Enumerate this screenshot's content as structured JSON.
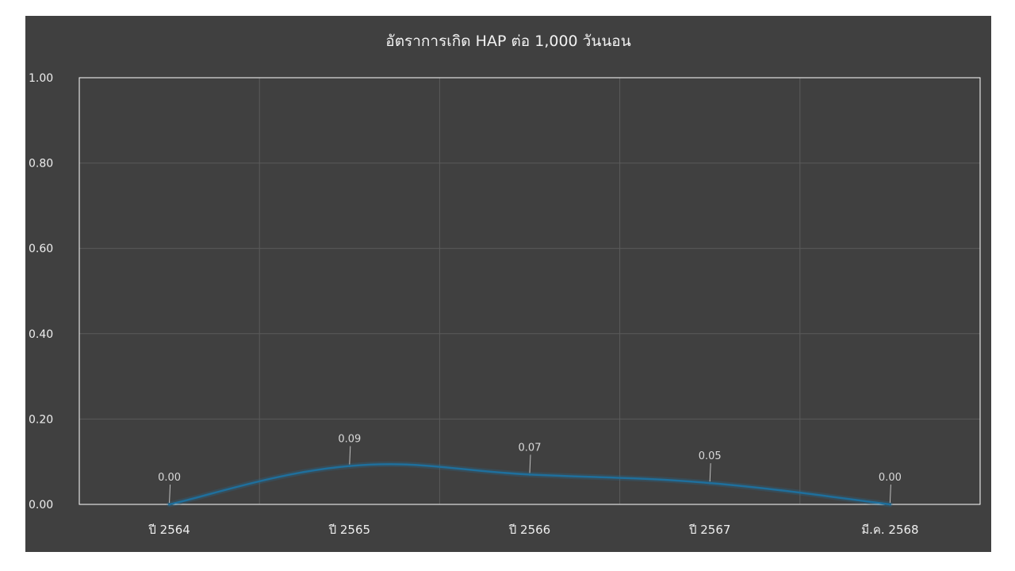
{
  "chart_data": {
    "type": "line",
    "title": "อัตราการเกิด HAP ต่อ 1,000 วันนอน",
    "categories": [
      "ปี 2564",
      "ปี 2565",
      "ปี 2566",
      "ปี 2567",
      "มี.ค. 2568"
    ],
    "series": [
      {
        "values": [
          0.0,
          0.09,
          0.07,
          0.05,
          0.0
        ],
        "color": "#1f6f9c"
      }
    ],
    "data_labels": [
      "0.00",
      "0.09",
      "0.07",
      "0.05",
      "0.00"
    ],
    "y_ticks": [
      "0.00",
      "0.20",
      "0.40",
      "0.60",
      "0.80",
      "1.00"
    ],
    "ylim": [
      0,
      1
    ],
    "grid": true,
    "smooth": true,
    "colors": {
      "background": "#404040",
      "grid": "#5a5a5a",
      "plot_border": "#ffffff",
      "line": "#1f6f9c"
    }
  }
}
